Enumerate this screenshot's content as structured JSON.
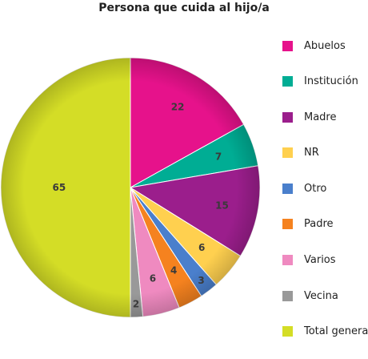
{
  "chart_data": {
    "type": "pie",
    "title": "Persona que cuida al hijo/a",
    "slices": [
      {
        "label": "Abuelos",
        "value": 22,
        "color": "#e6128b"
      },
      {
        "label": "Institución",
        "value": 7,
        "color": "#00ad94"
      },
      {
        "label": "Madre",
        "value": 15,
        "color": "#9b1e8c"
      },
      {
        "label": "NR",
        "value": 6,
        "color": "#ffd04f"
      },
      {
        "label": "Otro",
        "value": 3,
        "color": "#4a7fcc"
      },
      {
        "label": "Padre",
        "value": 4,
        "color": "#f5821f"
      },
      {
        "label": "Varios",
        "value": 6,
        "color": "#ef8ac0"
      },
      {
        "label": "Vecina",
        "value": 2,
        "color": "#999999"
      },
      {
        "label": "Total general",
        "value": 65,
        "color": "#d4dd26"
      }
    ],
    "legend_position": "right"
  }
}
